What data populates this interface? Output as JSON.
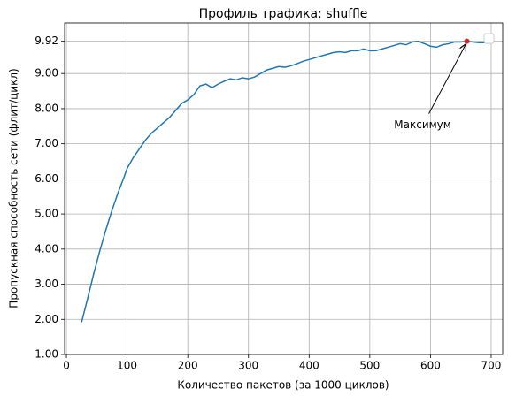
{
  "chart_data": {
    "type": "line",
    "title": "Профиль трафика: shuffle",
    "xlabel": "Количество пакетов (за 1000 циклов)",
    "ylabel": "Пропускная способность сети (флит/цикл)",
    "x": [
      25,
      35,
      45,
      55,
      65,
      75,
      85,
      95,
      100,
      110,
      120,
      130,
      140,
      150,
      160,
      170,
      180,
      190,
      200,
      210,
      220,
      230,
      240,
      250,
      260,
      270,
      280,
      290,
      300,
      310,
      320,
      330,
      340,
      350,
      360,
      370,
      380,
      390,
      400,
      410,
      420,
      430,
      440,
      450,
      460,
      470,
      480,
      490,
      500,
      510,
      520,
      530,
      540,
      550,
      560,
      570,
      580,
      590,
      600,
      610,
      620,
      630,
      640,
      650,
      660,
      670,
      680,
      690
    ],
    "series": [
      {
        "name": null,
        "color": "#1f77b4",
        "values": [
          1.92,
          2.6,
          3.3,
          3.95,
          4.55,
          5.1,
          5.6,
          6.05,
          6.3,
          6.6,
          6.85,
          7.1,
          7.3,
          7.45,
          7.6,
          7.75,
          7.95,
          8.15,
          8.25,
          8.4,
          8.65,
          8.7,
          8.6,
          8.7,
          8.78,
          8.85,
          8.82,
          8.88,
          8.85,
          8.9,
          9.0,
          9.1,
          9.15,
          9.2,
          9.18,
          9.22,
          9.28,
          9.35,
          9.4,
          9.45,
          9.5,
          9.55,
          9.6,
          9.62,
          9.6,
          9.65,
          9.65,
          9.7,
          9.65,
          9.65,
          9.7,
          9.75,
          9.8,
          9.85,
          9.82,
          9.9,
          9.92,
          9.85,
          9.78,
          9.75,
          9.82,
          9.85,
          9.9,
          9.9,
          9.92,
          9.9,
          9.88,
          9.88
        ]
      }
    ],
    "max_point": {
      "x": 660,
      "y": 9.92,
      "color": "#d62728"
    },
    "annotation": "Максимум",
    "xlim": [
      -3,
      719
    ],
    "ylim": [
      1,
      10.44
    ],
    "xticks": [
      0,
      100,
      200,
      300,
      400,
      500,
      600,
      700
    ],
    "yticks": [
      {
        "value": 1,
        "label": "1.00"
      },
      {
        "value": 2,
        "label": "2.00"
      },
      {
        "value": 3,
        "label": "3.00"
      },
      {
        "value": 4,
        "label": "4.00"
      },
      {
        "value": 5,
        "label": "5.00"
      },
      {
        "value": 6,
        "label": "6.00"
      },
      {
        "value": 7,
        "label": "7.00"
      },
      {
        "value": 8,
        "label": "8.00"
      },
      {
        "value": 9,
        "label": "9.00"
      },
      9.92
    ],
    "grid": true
  }
}
